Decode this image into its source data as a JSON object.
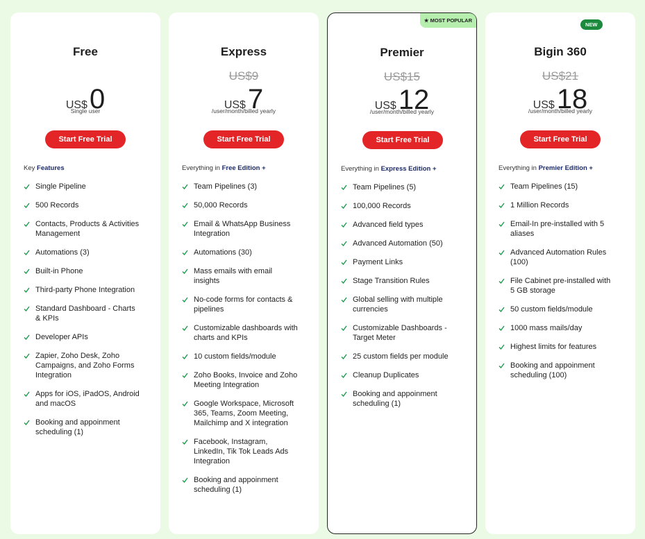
{
  "plans": [
    {
      "name": "Free",
      "currency": "US$",
      "price": "0",
      "period": "Single user",
      "button": "Start Free Trial",
      "intro_prefix": "Key",
      "intro_emphasis": "Features",
      "features": [
        "Single Pipeline",
        "500 Records",
        "Contacts, Products & Activities Management",
        "Automations (3)",
        "Built-in Phone",
        "Third-party Phone Integration",
        "Standard Dashboard - Charts & KPIs",
        "Developer APIs",
        "Zapier, Zoho Desk, Zoho Campaigns, and Zoho Forms Integration",
        "Apps for iOS, iPadOS, Android and macOS",
        "Booking and appoinment scheduling (1)"
      ]
    },
    {
      "name": "Express",
      "old_price": "US$9",
      "currency": "US$",
      "price": "7",
      "period": "/user/month/billed yearly",
      "button": "Start Free Trial",
      "intro_prefix": "Everything in",
      "intro_emphasis": "Free Edition +",
      "features": [
        "Team Pipelines (3)",
        "50,000 Records",
        "Email & WhatsApp Business Integration",
        "Automations (30)",
        "Mass emails with email insights",
        "No-code forms for contacts & pipelines",
        "Customizable dashboards with charts and KPIs",
        "10 custom fields/module",
        "Zoho Books, Invoice and Zoho Meeting Integration",
        "Google Workspace, Microsoft 365, Teams, Zoom Meeting, Mailchimp and X integration",
        "Facebook, Instagram, LinkedIn, Tik Tok Leads Ads Integration",
        "Booking and appoinment scheduling (1)"
      ]
    },
    {
      "name": "Premier",
      "badge": "★ MOST POPULAR",
      "old_price": "US$15",
      "currency": "US$",
      "price": "12",
      "period": "/user/month/billed yearly",
      "button": "Start Free Trial",
      "intro_prefix": "Everything in",
      "intro_emphasis": "Express Edition +",
      "features": [
        "Team Pipelines (5)",
        "100,000 Records",
        "Advanced field types",
        "Advanced Automation (50)",
        "Payment Links",
        "Stage Transition Rules",
        "Global selling with multiple currencies",
        "Customizable Dashboards - Target Meter",
        "25 custom fields per module",
        "Cleanup Duplicates",
        "Booking and appoinment scheduling (1)"
      ]
    },
    {
      "name": "Bigin 360",
      "badge": "NEW",
      "old_price": "US$21",
      "currency": "US$",
      "price": "18",
      "period": "/user/month/billed yearly",
      "button": "Start Free Trial",
      "intro_prefix": "Everything in",
      "intro_emphasis": "Premier Edition +",
      "features": [
        "Team Pipelines (15)",
        "1 Million Records",
        "Email-In pre-installed with 5 aliases",
        "Advanced Automation Rules (100)",
        "File Cabinet pre-installed with 5 GB storage",
        "50 custom fields/module",
        "1000 mass mails/day",
        "Highest limits for features",
        "Booking and appoinment scheduling (100)"
      ]
    }
  ]
}
